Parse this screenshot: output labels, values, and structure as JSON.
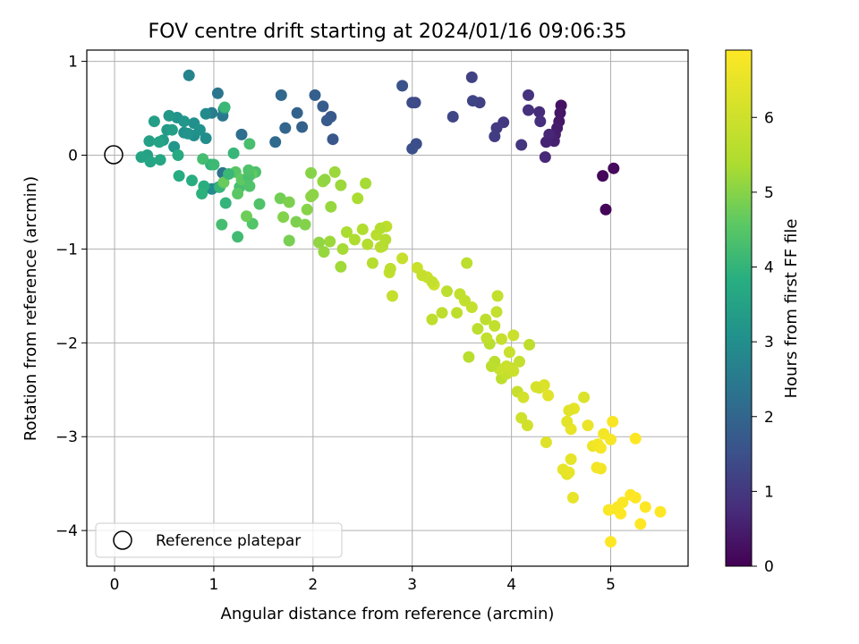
{
  "chart_data": {
    "type": "scatter",
    "title": "FOV centre drift starting at 2024/01/16 09:06:35",
    "xlabel": "Angular distance from reference (arcmin)",
    "ylabel": "Rotation from reference (arcmin)",
    "xlim": [
      -0.28,
      5.78
    ],
    "ylim": [
      -4.38,
      1.12
    ],
    "xticks": [
      0,
      1,
      2,
      3,
      4,
      5
    ],
    "yticks": [
      1,
      0,
      -1,
      -2,
      -3,
      -4
    ],
    "xtick_labels": [
      "0",
      "1",
      "2",
      "3",
      "4",
      "5"
    ],
    "ytick_labels": [
      "1",
      "0",
      "−1",
      "−2",
      "−3",
      "−4"
    ],
    "grid": true,
    "colormap": "viridis",
    "colorbar": {
      "label": "Hours from first FF file",
      "range": [
        0,
        6.9
      ],
      "ticks": [
        0,
        1,
        2,
        3,
        4,
        5,
        6
      ],
      "tick_labels": [
        "0",
        "1",
        "2",
        "3",
        "4",
        "5",
        "6"
      ]
    },
    "reference_point": {
      "x": 0,
      "y": 0
    },
    "legend": {
      "position": "lower-left",
      "entries": [
        "Reference platepar"
      ]
    },
    "points": [
      [
        4.95,
        -0.58,
        0.05
      ],
      [
        4.92,
        -0.22,
        0.1
      ],
      [
        5.03,
        -0.14,
        0.15
      ],
      [
        4.5,
        0.53,
        0.3
      ],
      [
        4.49,
        0.45,
        0.35
      ],
      [
        4.48,
        0.36,
        0.4
      ],
      [
        4.46,
        0.29,
        0.45
      ],
      [
        4.44,
        0.22,
        0.5
      ],
      [
        4.43,
        0.15,
        0.55
      ],
      [
        4.35,
        0.14,
        0.6
      ],
      [
        4.38,
        0.22,
        0.65
      ],
      [
        4.34,
        -0.02,
        0.7
      ],
      [
        4.28,
        0.46,
        0.75
      ],
      [
        4.29,
        0.36,
        0.8
      ],
      [
        4.17,
        0.48,
        0.85
      ],
      [
        4.17,
        0.64,
        0.9
      ],
      [
        4.1,
        0.11,
        0.95
      ],
      [
        3.92,
        0.35,
        1.0
      ],
      [
        3.85,
        0.29,
        1.05
      ],
      [
        3.83,
        0.2,
        1.1
      ],
      [
        3.68,
        0.56,
        1.15
      ],
      [
        3.6,
        0.83,
        1.2
      ],
      [
        3.61,
        0.58,
        1.25
      ],
      [
        3.41,
        0.41,
        1.3
      ],
      [
        3.03,
        0.56,
        1.35
      ],
      [
        3.0,
        0.56,
        1.4
      ],
      [
        3.04,
        0.12,
        1.45
      ],
      [
        3.0,
        0.07,
        1.5
      ],
      [
        2.9,
        0.74,
        1.55
      ],
      [
        2.2,
        0.17,
        1.65
      ],
      [
        2.18,
        0.41,
        1.7
      ],
      [
        2.14,
        0.37,
        1.75
      ],
      [
        2.1,
        0.52,
        1.8
      ],
      [
        2.02,
        0.64,
        1.85
      ],
      [
        1.89,
        0.3,
        1.9
      ],
      [
        1.84,
        0.45,
        1.95
      ],
      [
        1.72,
        0.29,
        2.0
      ],
      [
        1.68,
        0.64,
        2.05
      ],
      [
        1.62,
        0.14,
        2.1
      ],
      [
        1.28,
        0.22,
        2.2
      ],
      [
        1.09,
        -0.19,
        2.35
      ],
      [
        1.04,
        0.66,
        2.4
      ],
      [
        1.09,
        0.42,
        2.45
      ],
      [
        0.98,
        0.45,
        2.55
      ],
      [
        1.05,
        -0.34,
        2.7
      ],
      [
        0.75,
        0.85,
        2.75
      ],
      [
        1.1,
        0.49,
        2.8
      ],
      [
        0.92,
        0.44,
        2.9
      ],
      [
        0.98,
        -0.36,
        2.95
      ],
      [
        0.8,
        0.21,
        3.0
      ],
      [
        0.8,
        0.34,
        3.05
      ],
      [
        0.7,
        0.24,
        3.1
      ],
      [
        0.63,
        0.4,
        3.15
      ],
      [
        0.6,
        0.09,
        3.2
      ],
      [
        0.55,
        0.42,
        3.25
      ],
      [
        0.53,
        0.27,
        3.3
      ],
      [
        0.49,
        0.16,
        3.35
      ],
      [
        0.4,
        0.36,
        3.4
      ],
      [
        0.35,
        0.15,
        3.45
      ],
      [
        0.33,
        0.0,
        3.5
      ],
      [
        0.27,
        -0.02,
        3.55
      ],
      [
        0.36,
        -0.07,
        3.6
      ],
      [
        0.46,
        -0.05,
        3.65
      ],
      [
        0.64,
        0.0,
        3.7
      ],
      [
        0.65,
        -0.22,
        3.75
      ],
      [
        0.78,
        -0.27,
        3.8
      ],
      [
        0.9,
        -0.33,
        3.85
      ],
      [
        0.88,
        -0.41,
        3.9
      ],
      [
        0.97,
        -0.1,
        3.95
      ],
      [
        1.12,
        -0.51,
        4.0
      ],
      [
        1.06,
        -0.34,
        4.05
      ],
      [
        1.11,
        0.51,
        4.1
      ],
      [
        1.0,
        -0.1,
        4.15
      ],
      [
        1.24,
        -0.87,
        4.2
      ],
      [
        0.89,
        -0.04,
        4.25
      ],
      [
        1.26,
        -0.34,
        4.3
      ],
      [
        1.42,
        -0.18,
        4.35
      ],
      [
        1.46,
        -0.52,
        4.4
      ],
      [
        1.39,
        -0.73,
        4.45
      ],
      [
        1.22,
        -0.18,
        4.5
      ],
      [
        1.24,
        -0.41,
        4.55
      ],
      [
        1.28,
        -0.26,
        4.6
      ],
      [
        1.38,
        -0.2,
        4.65
      ],
      [
        1.1,
        -0.29,
        4.7
      ],
      [
        1.33,
        -0.65,
        4.75
      ],
      [
        1.67,
        -0.46,
        4.8
      ],
      [
        1.76,
        -0.91,
        4.85
      ],
      [
        1.83,
        -0.71,
        4.9
      ],
      [
        1.92,
        -0.74,
        4.95
      ],
      [
        1.94,
        -0.58,
        5.0
      ],
      [
        1.98,
        -0.44,
        5.05
      ],
      [
        2.06,
        -0.93,
        5.1
      ],
      [
        2.11,
        -1.03,
        5.15
      ],
      [
        2.17,
        -0.92,
        5.2
      ],
      [
        2.28,
        -1.19,
        5.25
      ],
      [
        2.3,
        -1.0,
        5.3
      ],
      [
        2.34,
        -0.82,
        5.35
      ],
      [
        2.42,
        -0.9,
        5.4
      ],
      [
        2.5,
        -0.79,
        5.45
      ],
      [
        2.55,
        -0.95,
        5.5
      ],
      [
        2.6,
        -1.15,
        5.55
      ],
      [
        2.64,
        -0.85,
        5.6
      ],
      [
        2.68,
        -0.98,
        5.65
      ],
      [
        2.74,
        -0.76,
        5.7
      ],
      [
        2.77,
        -1.25,
        5.75
      ],
      [
        2.8,
        -1.5,
        5.8
      ],
      [
        2.9,
        -1.1,
        5.85
      ],
      [
        3.05,
        -1.2,
        5.9
      ],
      [
        3.15,
        -1.3,
        5.95
      ],
      [
        3.22,
        -1.38,
        6.0
      ],
      [
        3.35,
        -1.45,
        5.65
      ],
      [
        3.45,
        -1.68,
        5.7
      ],
      [
        3.53,
        -1.55,
        5.75
      ],
      [
        3.6,
        -1.62,
        5.8
      ],
      [
        3.57,
        -2.15,
        5.6
      ],
      [
        3.66,
        -1.85,
        5.65
      ],
      [
        3.74,
        -1.75,
        5.7
      ],
      [
        3.83,
        -1.82,
        5.75
      ],
      [
        3.86,
        -1.5,
        5.8
      ],
      [
        3.9,
        -1.96,
        5.85
      ],
      [
        3.98,
        -2.1,
        5.9
      ],
      [
        4.02,
        -1.92,
        5.95
      ],
      [
        3.78,
        -2.01,
        5.6
      ],
      [
        3.9,
        -2.38,
        5.7
      ],
      [
        4.0,
        -2.27,
        5.75
      ],
      [
        4.08,
        -2.2,
        5.8
      ],
      [
        4.06,
        -2.52,
        5.85
      ],
      [
        4.1,
        -2.8,
        6.0
      ],
      [
        4.18,
        -2.02,
        5.7
      ],
      [
        4.12,
        -2.58,
        6.1
      ],
      [
        4.28,
        -2.48,
        6.2
      ],
      [
        4.33,
        -2.45,
        6.25
      ],
      [
        4.35,
        -3.06,
        6.3
      ],
      [
        4.37,
        -2.56,
        6.35
      ],
      [
        4.56,
        -3.4,
        6.4
      ],
      [
        4.6,
        -3.24,
        6.45
      ],
      [
        4.6,
        -2.92,
        6.5
      ],
      [
        4.73,
        -2.58,
        6.25
      ],
      [
        4.62,
        -3.65,
        6.5
      ],
      [
        4.77,
        -2.88,
        6.55
      ],
      [
        4.82,
        -3.1,
        6.6
      ],
      [
        4.9,
        -3.34,
        6.65
      ],
      [
        4.93,
        -2.97,
        6.7
      ],
      [
        5.0,
        -3.03,
        6.75
      ],
      [
        5.02,
        -2.84,
        6.8
      ],
      [
        5.06,
        -3.77,
        6.85
      ],
      [
        5.12,
        -3.7,
        6.85
      ],
      [
        5.2,
        -3.62,
        6.9
      ],
      [
        5.25,
        -3.65,
        6.9
      ],
      [
        5.25,
        -3.02,
        6.9
      ],
      [
        5.3,
        -3.93,
        6.9
      ],
      [
        5.35,
        -3.75,
        6.9
      ],
      [
        5.5,
        -3.8,
        6.9
      ],
      [
        5.0,
        -4.12,
        6.9
      ],
      [
        5.1,
        -3.82,
        6.9
      ],
      [
        5.07,
        -3.75,
        6.85
      ],
      [
        4.98,
        -3.78,
        6.85
      ],
      [
        2.73,
        -0.9,
        5.5
      ],
      [
        2.7,
        -0.97,
        5.55
      ],
      [
        2.68,
        -0.78,
        5.52
      ],
      [
        2.53,
        -0.3,
        5.3
      ],
      [
        2.45,
        -0.46,
        5.35
      ],
      [
        2.22,
        -0.18,
        5.2
      ],
      [
        2.1,
        -0.28,
        5.15
      ],
      [
        2.12,
        -0.26,
        5.1
      ],
      [
        2.18,
        -0.55,
        5.15
      ],
      [
        2.28,
        -0.32,
        5.2
      ],
      [
        1.98,
        -0.19,
        5.0
      ],
      [
        2.0,
        -0.42,
        5.05
      ],
      [
        1.76,
        -0.5,
        4.9
      ],
      [
        1.7,
        -0.66,
        4.95
      ],
      [
        3.95,
        -2.33,
        5.85
      ],
      [
        3.88,
        -2.28,
        5.9
      ],
      [
        3.95,
        -2.25,
        5.9
      ],
      [
        4.02,
        -2.3,
        5.95
      ],
      [
        3.83,
        -2.2,
        5.6
      ],
      [
        3.8,
        -2.25,
        5.65
      ],
      [
        3.85,
        -1.67,
        5.8
      ],
      [
        3.75,
        -1.95,
        5.75
      ],
      [
        3.3,
        -1.68,
        5.7
      ],
      [
        3.48,
        -1.48,
        5.75
      ],
      [
        3.1,
        -1.28,
        5.85
      ],
      [
        3.2,
        -1.75,
        5.7
      ],
      [
        3.2,
        -1.35,
        5.8
      ],
      [
        2.78,
        -1.21,
        5.7
      ],
      [
        3.55,
        -1.15,
        5.65
      ],
      [
        4.52,
        -3.35,
        6.45
      ],
      [
        4.58,
        -3.38,
        6.5
      ],
      [
        4.56,
        -2.84,
        6.4
      ],
      [
        4.63,
        -2.7,
        6.45
      ],
      [
        4.86,
        -3.33,
        6.7
      ],
      [
        4.87,
        -3.08,
        6.7
      ],
      [
        4.9,
        -3.12,
        6.75
      ],
      [
        4.58,
        -2.72,
        6.35
      ],
      [
        4.25,
        -2.47,
        6.15
      ],
      [
        4.16,
        -2.88,
        6.05
      ],
      [
        0.45,
        0.14,
        3.55
      ],
      [
        0.58,
        0.27,
        3.4
      ],
      [
        0.74,
        0.23,
        3.15
      ],
      [
        0.7,
        0.36,
        3.2
      ],
      [
        0.86,
        0.27,
        3.1
      ],
      [
        0.92,
        0.18,
        3.0
      ],
      [
        1.2,
        0.02,
        4.05
      ],
      [
        1.15,
        -0.2,
        4.1
      ],
      [
        1.35,
        -0.23,
        4.35
      ],
      [
        1.35,
        -0.16,
        4.4
      ],
      [
        1.36,
        0.12,
        4.3
      ],
      [
        1.08,
        -0.74,
        4.25
      ],
      [
        1.36,
        -0.33,
        4.4
      ]
    ]
  }
}
